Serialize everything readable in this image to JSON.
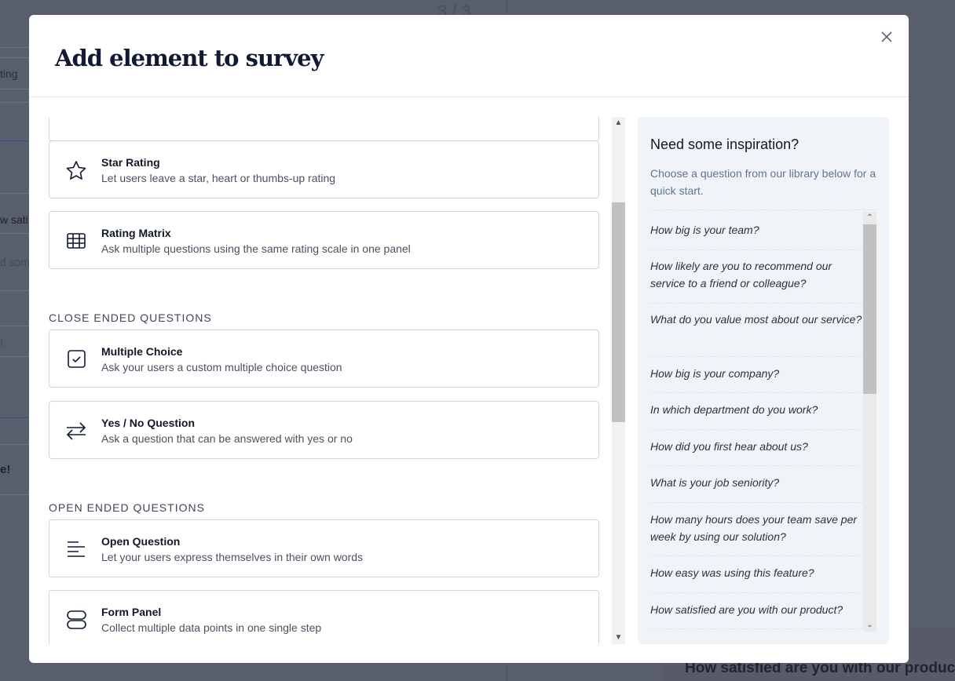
{
  "background": {
    "page_counter": "3 / 3",
    "fragments": [
      "ting",
      "w sati",
      "d som",
      "t",
      "e!"
    ],
    "question_preview": "How satisfied are you with our product?"
  },
  "modal": {
    "title": "Add element to survey",
    "close_icon": "close-icon"
  },
  "elements": {
    "items": [
      {
        "title": "Star Rating",
        "desc": "Let users leave a star, heart or thumbs-up rating",
        "icon": "star-icon"
      },
      {
        "title": "Rating Matrix",
        "desc": "Ask multiple questions using the same rating scale in one panel",
        "icon": "grid-icon"
      },
      {
        "title": "Multiple Choice",
        "desc": "Ask your users a custom multiple choice question",
        "icon": "checkbox-icon"
      },
      {
        "title": "Yes / No Question",
        "desc": "Ask a question that can be answered with yes or no",
        "icon": "arrows-swap-icon"
      },
      {
        "title": "Open Question",
        "desc": "Let your users express themselves in their own words",
        "icon": "text-lines-icon"
      },
      {
        "title": "Form Panel",
        "desc": "Collect multiple data points in one single step",
        "icon": "form-panel-icon"
      }
    ],
    "sections": [
      "CLOSE ENDED QUESTIONS",
      "OPEN ENDED QUESTIONS"
    ]
  },
  "inspiration": {
    "title": "Need some inspiration?",
    "subtitle": "Choose a question from our library below for a quick start.",
    "questions": [
      "How big is your team?",
      "How likely are you to recommend our service to a friend or colleague?",
      "What do you value most about our service?",
      "How big is your company?",
      "In which department do you work?",
      "How did you first hear about us?",
      "What is your job seniority?",
      "How many hours does your team save per week by using our solution?",
      "How easy was using this feature?",
      "How satisfied are you with our product?"
    ]
  }
}
